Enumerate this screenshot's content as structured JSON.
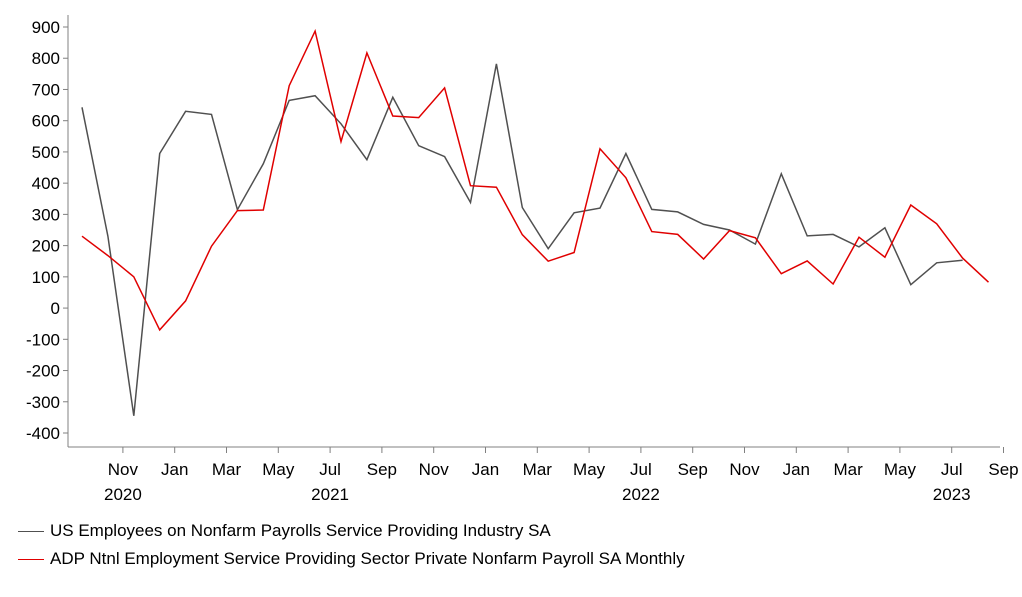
{
  "colors": {
    "series_1": "#505050",
    "series_2": "#e00000",
    "axis": "#808080"
  },
  "chart_data": {
    "type": "line",
    "title": "",
    "xlabel": "",
    "ylabel": "",
    "ylim": [
      -400,
      900
    ],
    "y_ticks": [
      "900",
      "800",
      "700",
      "600",
      "500",
      "400",
      "300",
      "200",
      "100",
      "0",
      "-100",
      "-200",
      "-300",
      "-400"
    ],
    "x_ticks": [
      {
        "month": "Nov",
        "year": "2020",
        "date": "2020-11"
      },
      {
        "month": "Jan",
        "year": "",
        "date": "2021-01"
      },
      {
        "month": "Mar",
        "year": "",
        "date": "2021-03"
      },
      {
        "month": "May",
        "year": "",
        "date": "2021-05"
      },
      {
        "month": "Jul",
        "year": "2021",
        "date": "2021-07"
      },
      {
        "month": "Sep",
        "year": "",
        "date": "2021-09"
      },
      {
        "month": "Nov",
        "year": "",
        "date": "2021-11"
      },
      {
        "month": "Jan",
        "year": "",
        "date": "2022-01"
      },
      {
        "month": "Mar",
        "year": "",
        "date": "2022-03"
      },
      {
        "month": "May",
        "year": "",
        "date": "2022-05"
      },
      {
        "month": "Jul",
        "year": "2022",
        "date": "2022-07"
      },
      {
        "month": "Sep",
        "year": "",
        "date": "2022-09"
      },
      {
        "month": "Nov",
        "year": "",
        "date": "2022-11"
      },
      {
        "month": "Jan",
        "year": "",
        "date": "2023-01"
      },
      {
        "month": "Mar",
        "year": "",
        "date": "2023-03"
      },
      {
        "month": "May",
        "year": "",
        "date": "2023-05"
      },
      {
        "month": "Jul",
        "year": "2023",
        "date": "2023-07"
      },
      {
        "month": "Sep",
        "year": "",
        "date": "2023-09"
      }
    ],
    "x": [
      "2020-10",
      "2020-11",
      "2020-12",
      "2021-01",
      "2021-02",
      "2021-03",
      "2021-04",
      "2021-05",
      "2021-06",
      "2021-07",
      "2021-08",
      "2021-09",
      "2021-10",
      "2021-11",
      "2021-12",
      "2022-01",
      "2022-02",
      "2022-03",
      "2022-04",
      "2022-05",
      "2022-06",
      "2022-07",
      "2022-08",
      "2022-09",
      "2022-10",
      "2022-11",
      "2022-12",
      "2023-01",
      "2023-02",
      "2023-03",
      "2023-04",
      "2023-05",
      "2023-06",
      "2023-07",
      "2023-08",
      "2023-09",
      "2023-10"
    ],
    "series": [
      {
        "name": "US Employees on Nonfarm Payrolls Service Providing Industry SA",
        "values": [
          643,
          230,
          -345,
          495,
          630,
          620,
          315,
          462,
          665,
          680,
          590,
          475,
          675,
          520,
          485,
          338,
          782,
          322,
          190,
          305,
          320,
          495,
          316,
          308,
          268,
          250,
          205,
          430,
          231,
          236,
          196,
          257,
          75,
          145,
          153,
          null,
          null
        ]
      },
      {
        "name": "ADP Ntnl Employment Service Providing Sector Private Nonfarm Payroll SA Monthly",
        "values": [
          230,
          168,
          100,
          -70,
          23,
          198,
          312,
          314,
          712,
          887,
          533,
          817,
          615,
          610,
          705,
          392,
          387,
          235,
          150,
          178,
          510,
          417,
          245,
          236,
          157,
          248,
          225,
          110,
          151,
          77,
          227,
          163,
          330,
          270,
          160,
          83,
          null
        ]
      }
    ]
  }
}
